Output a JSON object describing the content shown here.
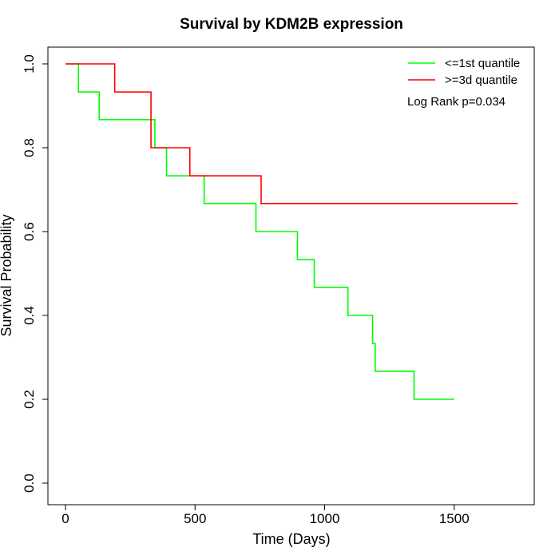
{
  "chart_data": {
    "type": "line",
    "title": "Survival by KDM2B expression",
    "xlabel": "Time (Days)",
    "ylabel": "Survival Probability",
    "xlim": [
      0,
      1750
    ],
    "ylim": [
      0,
      1
    ],
    "x_ticks": [
      "0",
      "500",
      "1000",
      "1500"
    ],
    "y_ticks": [
      "0.0",
      "0.2",
      "0.4",
      "0.6",
      "0.8",
      "1.0"
    ],
    "grid": false,
    "legend": "top-right",
    "annotation": "Log Rank p=0.034",
    "series": [
      {
        "name": "<=1st quantile",
        "color": "#00ff00",
        "style": "step",
        "x": [
          0,
          50,
          130,
          345,
          390,
          535,
          735,
          895,
          960,
          1090,
          1185,
          1195,
          1345,
          1500
        ],
        "y": [
          1.0,
          0.933,
          0.867,
          0.8,
          0.733,
          0.667,
          0.6,
          0.533,
          0.467,
          0.4,
          0.333,
          0.267,
          0.2,
          0.2
        ]
      },
      {
        "name": ">=3d quantile",
        "color": "#ff0000",
        "style": "step",
        "x": [
          0,
          190,
          330,
          480,
          755,
          1745
        ],
        "y": [
          1.0,
          0.933,
          0.8,
          0.733,
          0.667,
          0.667
        ]
      }
    ]
  }
}
